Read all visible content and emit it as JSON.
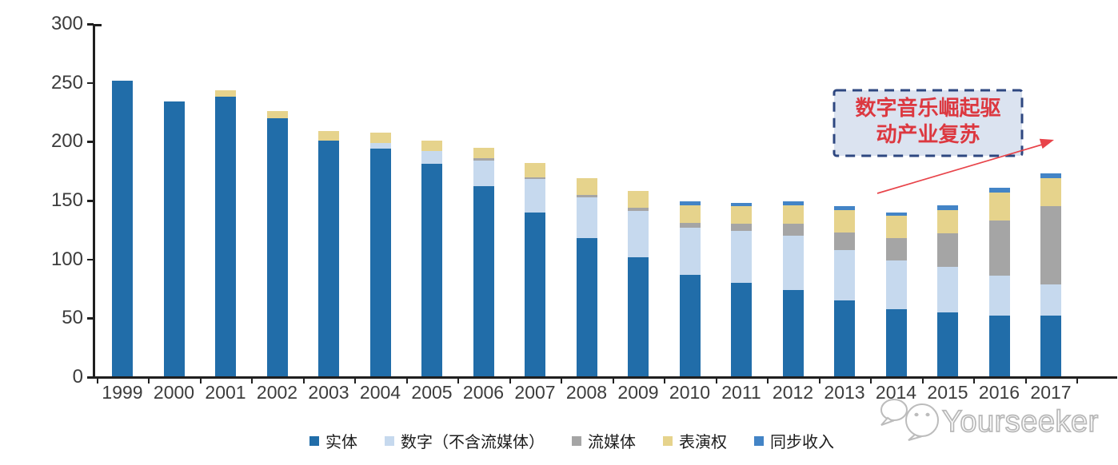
{
  "chart_data": {
    "type": "bar",
    "stacked": true,
    "title": "",
    "xlabel": "",
    "ylabel": "",
    "ylim": [
      0,
      300
    ],
    "yticks": [
      0,
      50,
      100,
      150,
      200,
      250,
      300
    ],
    "grid": false,
    "legend_position": "bottom",
    "categories": [
      "1999",
      "2000",
      "2001",
      "2002",
      "2003",
      "2004",
      "2005",
      "2006",
      "2007",
      "2008",
      "2009",
      "2010",
      "2011",
      "2012",
      "2013",
      "2014",
      "2015",
      "2016",
      "2017"
    ],
    "series": [
      {
        "name": "实体",
        "color": "#216DA9",
        "values": [
          252,
          234,
          238,
          220,
          201,
          194,
          181,
          162,
          140,
          118,
          102,
          87,
          80,
          74,
          65,
          58,
          55,
          52,
          52
        ]
      },
      {
        "name": "数字（不含流媒体）",
        "color": "#C6D9EE",
        "values": [
          0,
          0,
          0,
          0,
          0,
          5,
          11,
          22,
          28,
          35,
          39,
          40,
          44,
          46,
          43,
          41,
          39,
          34,
          27
        ]
      },
      {
        "name": "流媒体",
        "color": "#A5A5A5",
        "values": [
          0,
          0,
          0,
          0,
          0,
          0,
          0,
          2,
          2,
          2,
          3,
          4,
          6,
          10,
          15,
          19,
          28,
          47,
          66
        ]
      },
      {
        "name": "表演权",
        "color": "#E6D38C",
        "values": [
          0,
          0,
          6,
          6,
          8,
          9,
          9,
          9,
          12,
          14,
          14,
          15,
          15,
          16,
          19,
          19,
          20,
          24,
          24
        ]
      },
      {
        "name": "同步收入",
        "color": "#4384C6",
        "values": [
          0,
          0,
          0,
          0,
          0,
          0,
          0,
          0,
          0,
          0,
          0,
          3,
          3,
          3,
          3,
          3,
          4,
          4,
          4
        ]
      }
    ]
  },
  "annotation": {
    "line1": "数字音乐崛起驱",
    "line2": "动产业复苏",
    "text_color": "#DC3840",
    "border_color": "#2E4780",
    "fill_color": "#DBE3F0",
    "arrow_color": "#E8444A"
  },
  "watermark": {
    "text": "Yourseeker"
  }
}
